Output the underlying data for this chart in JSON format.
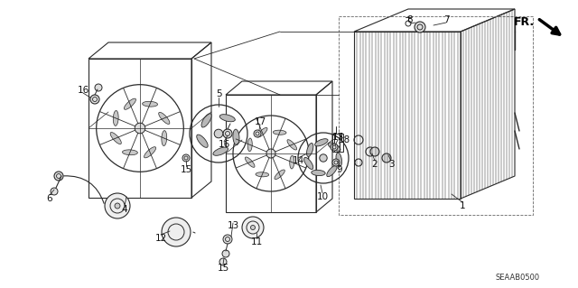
{
  "bg_color": "#ffffff",
  "fig_width": 6.4,
  "fig_height": 3.19,
  "dpi": 100,
  "diagram_code": "SEAAB0500",
  "fr_label": "FR.",
  "lc": "#2a2a2a",
  "label_font": 7.5
}
